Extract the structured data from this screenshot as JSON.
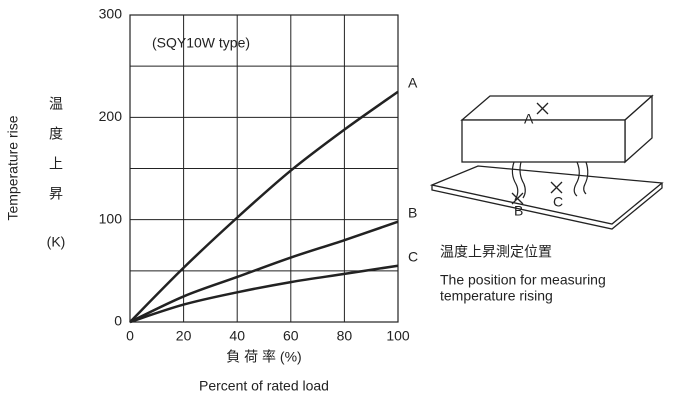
{
  "chart_data": {
    "type": "line",
    "annotation": "(SQY10W type)",
    "y_label": "Temperature rise",
    "y_label_ja": [
      "温",
      "度",
      "上",
      "昇",
      "(K)"
    ],
    "x_label_ja": "負 荷 率 (%)",
    "x_label": "Percent of rated load",
    "x": [
      0,
      20,
      40,
      60,
      80,
      100
    ],
    "series": [
      {
        "name": "A",
        "color": "#222222",
        "values": [
          0,
          53,
          102,
          148,
          188,
          225
        ]
      },
      {
        "name": "B",
        "color": "#222222",
        "values": [
          0,
          25,
          44,
          63,
          80,
          98
        ]
      },
      {
        "name": "C",
        "color": "#222222",
        "values": [
          0,
          17,
          29,
          39,
          47,
          55
        ]
      }
    ],
    "xlim": [
      0,
      100
    ],
    "xticks": [
      0,
      20,
      40,
      60,
      80,
      100
    ],
    "ylim": [
      0,
      300
    ],
    "yticks": [
      0,
      100,
      200,
      300
    ],
    "minor_yticks": [
      50,
      150,
      250
    ],
    "grid": true
  },
  "diagram": {
    "labels": [
      "A",
      "B",
      "C"
    ],
    "caption_ja": "温度上昇測定位置",
    "caption_en": [
      "The position for measuring",
      "temperature rising"
    ]
  }
}
